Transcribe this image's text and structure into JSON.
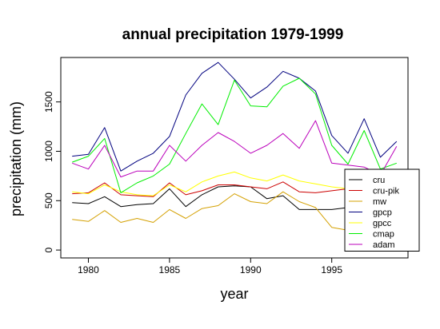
{
  "chart_data": {
    "type": "line",
    "title": "annual precipitation 1979-1999",
    "xlabel": "year",
    "ylabel": "precipitation (mm)",
    "xlim": [
      1978.3,
      1999.7
    ],
    "ylim": [
      -80,
      1950
    ],
    "x_ticks": [
      1980,
      1985,
      1990,
      1995
    ],
    "y_ticks": [
      0,
      500,
      1000,
      1500
    ],
    "grid": false,
    "legend_position": "bottom-right",
    "x": [
      1979,
      1980,
      1981,
      1982,
      1983,
      1984,
      1985,
      1986,
      1987,
      1988,
      1989,
      1990,
      1991,
      1992,
      1993,
      1994,
      1995,
      1996,
      1997,
      1998,
      1999
    ],
    "series": [
      {
        "name": "cru",
        "color": "#000000",
        "values": [
          480,
          470,
          540,
          440,
          460,
          470,
          620,
          440,
          560,
          640,
          650,
          640,
          520,
          550,
          410,
          410,
          410,
          430,
          430,
          440,
          450
        ]
      },
      {
        "name": "cru-pik",
        "color": "#cc0000",
        "values": [
          570,
          580,
          680,
          560,
          550,
          540,
          680,
          560,
          600,
          660,
          660,
          640,
          620,
          690,
          590,
          580,
          600,
          620,
          630,
          640,
          650
        ]
      },
      {
        "name": "mw",
        "color": "#d4a000",
        "values": [
          310,
          290,
          400,
          280,
          320,
          280,
          410,
          320,
          420,
          450,
          570,
          490,
          470,
          590,
          490,
          430,
          230,
          200,
          210,
          220,
          230
        ]
      },
      {
        "name": "gpcp",
        "color": "#00007f",
        "values": [
          950,
          970,
          1240,
          800,
          900,
          980,
          1150,
          1570,
          1790,
          1900,
          1730,
          1540,
          1650,
          1810,
          1740,
          1610,
          1160,
          980,
          1330,
          940,
          1100
        ]
      },
      {
        "name": "gpcc",
        "color": "#ffff00",
        "values": [
          590,
          570,
          660,
          590,
          560,
          550,
          660,
          590,
          690,
          750,
          790,
          730,
          700,
          760,
          700,
          670,
          640,
          620,
          630,
          640,
          650
        ]
      },
      {
        "name": "cmap",
        "color": "#00ee00",
        "values": [
          890,
          950,
          1130,
          580,
          680,
          750,
          870,
          1180,
          1480,
          1270,
          1720,
          1460,
          1450,
          1660,
          1740,
          1580,
          1060,
          870,
          1210,
          820,
          880
        ]
      },
      {
        "name": "adam",
        "color": "#bb00bb",
        "values": [
          880,
          820,
          1060,
          740,
          800,
          800,
          1060,
          900,
          1060,
          1190,
          1100,
          980,
          1060,
          1180,
          1030,
          1310,
          880,
          860,
          840,
          760,
          1050
        ]
      }
    ]
  }
}
